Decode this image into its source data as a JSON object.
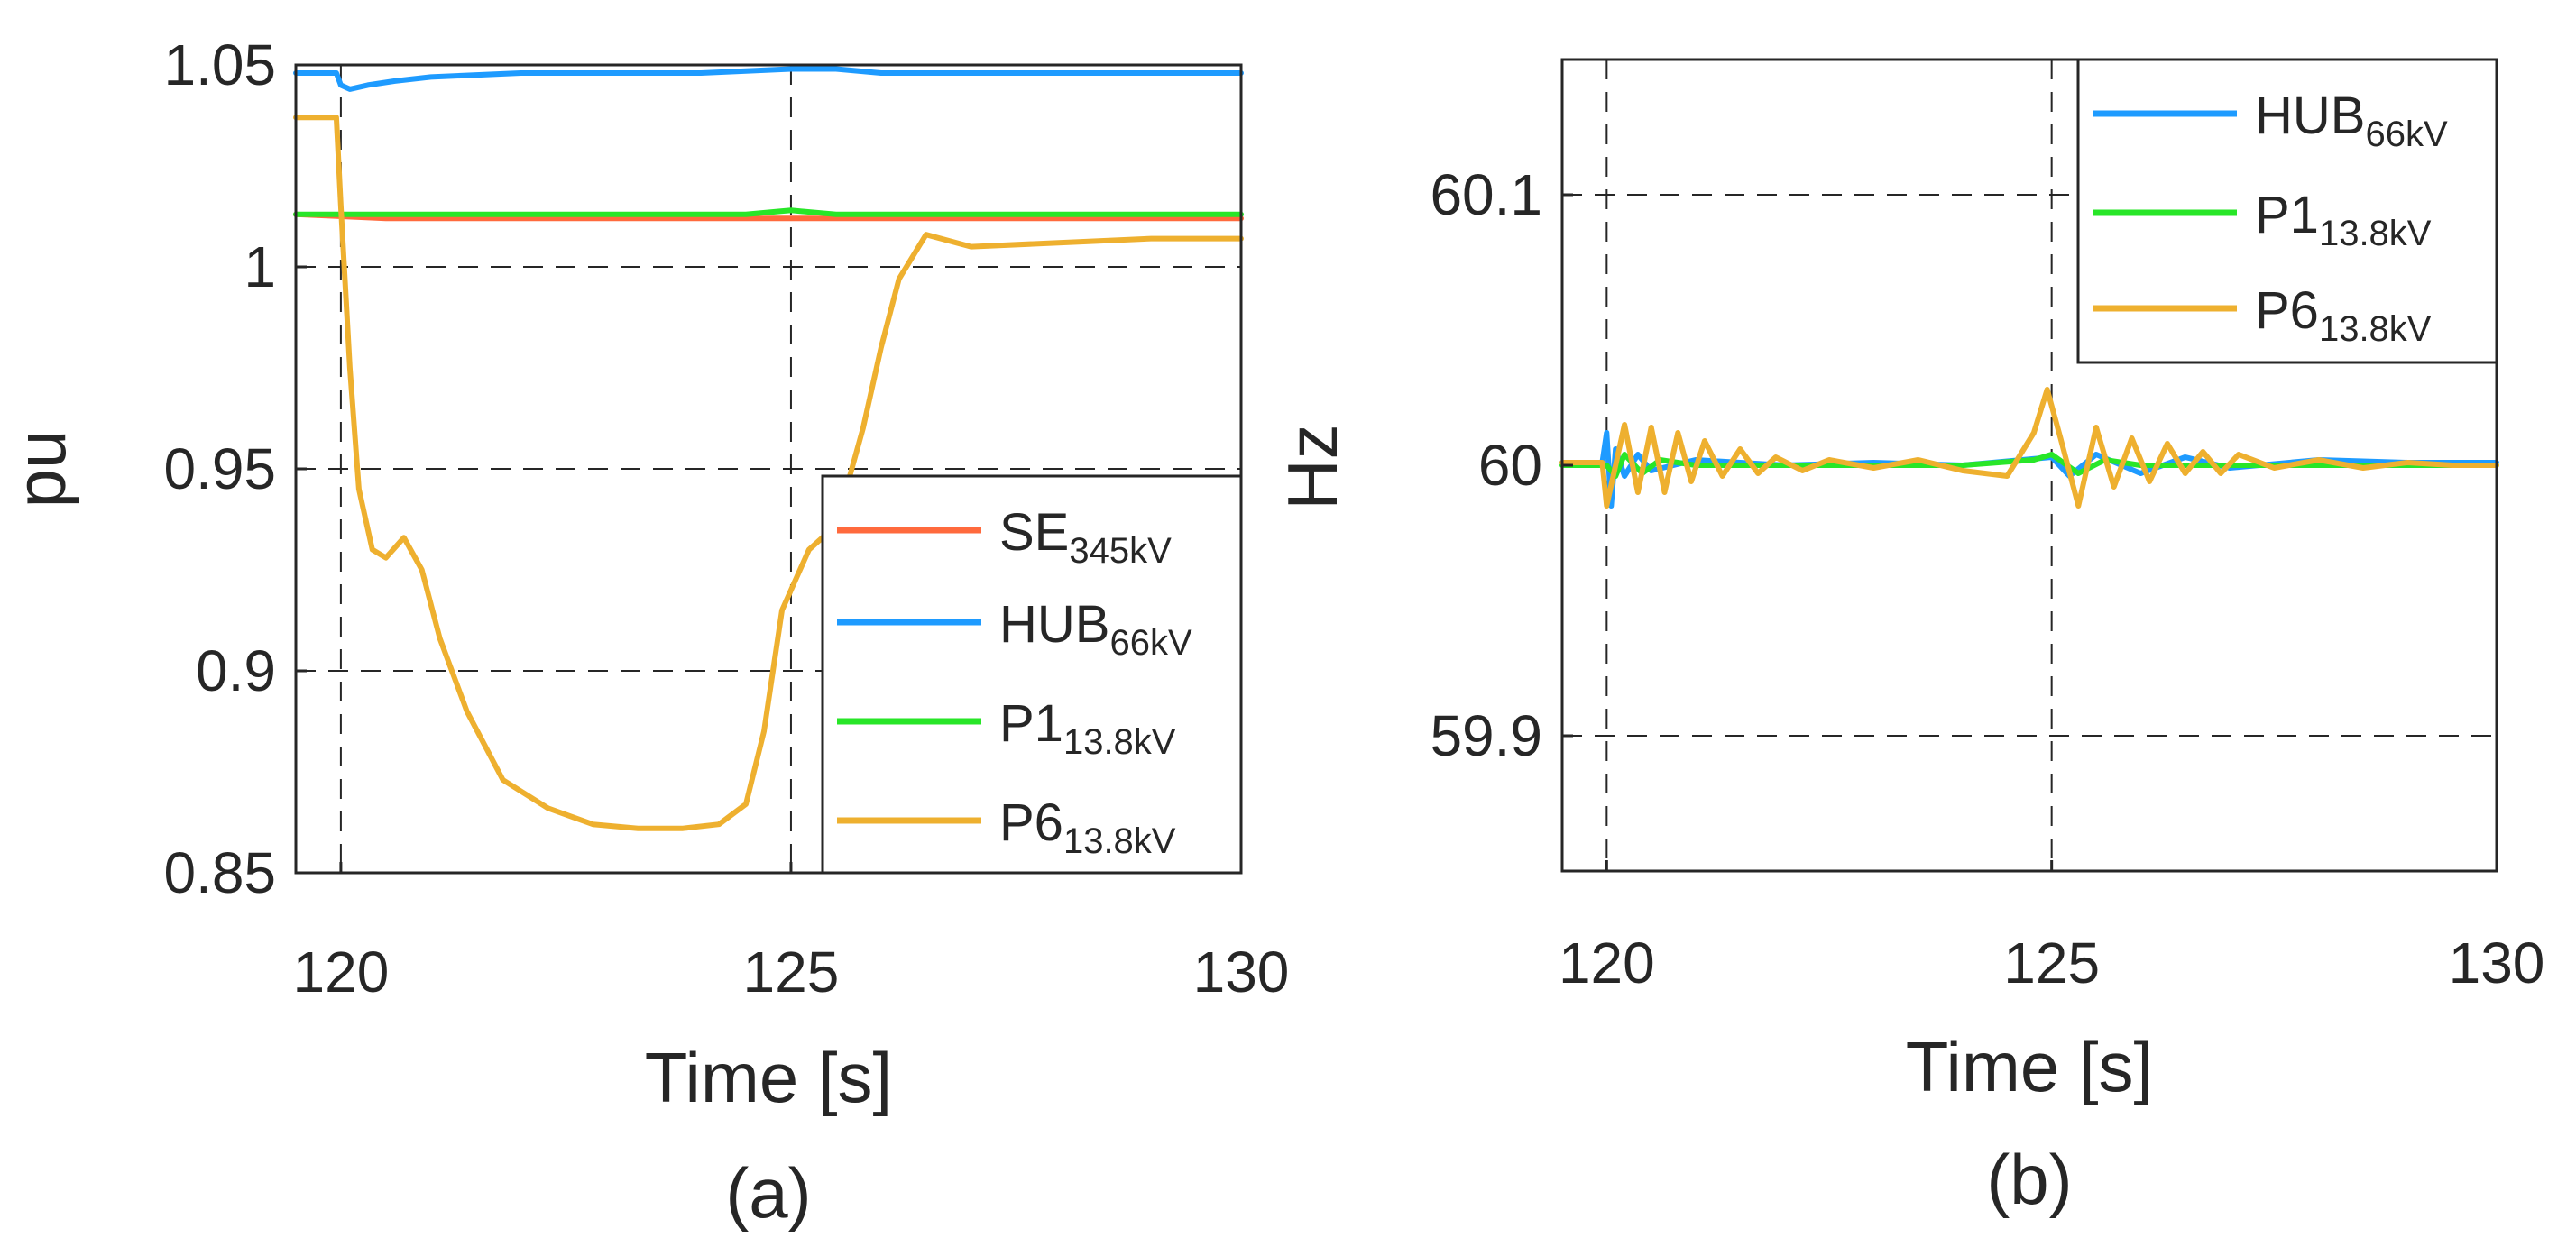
{
  "chart_data": [
    {
      "type": "line",
      "caption": "(a)",
      "xlabel": "Time [s]",
      "ylabel": "pu",
      "xlim": [
        119.5,
        130
      ],
      "ylim": [
        0.85,
        1.05
      ],
      "xticks": [
        120,
        125,
        130
      ],
      "xtick_labels": [
        "120",
        "125",
        "130"
      ],
      "yticks": [
        0.85,
        0.9,
        0.95,
        1.0,
        1.05
      ],
      "ytick_labels": [
        "0.85",
        "0.9",
        "0.95",
        "1",
        "1.05"
      ],
      "grid": {
        "vertical": [
          120,
          125
        ],
        "horizontal": [
          0.9,
          0.95,
          1.0
        ]
      },
      "legend_position": "bottom-right",
      "series": [
        {
          "name": "SE",
          "sub": "345kV",
          "color": "#ff6a3d",
          "x": [
            119.5,
            120.5,
            121.5,
            122.5,
            123.5,
            124.5,
            125.5,
            126.5,
            127.5,
            128.5,
            129.5,
            130
          ],
          "y": [
            1.013,
            1.012,
            1.012,
            1.012,
            1.012,
            1.012,
            1.012,
            1.012,
            1.012,
            1.012,
            1.012,
            1.012
          ]
        },
        {
          "name": "HUB",
          "sub": "66kV",
          "color": "#1e9bff",
          "x": [
            119.5,
            119.95,
            120.0,
            120.1,
            120.3,
            120.6,
            121.0,
            122.0,
            123.0,
            124.0,
            125.0,
            125.5,
            126.0,
            127.0,
            128.0,
            129.0,
            130
          ],
          "y": [
            1.048,
            1.048,
            1.045,
            1.044,
            1.045,
            1.046,
            1.047,
            1.048,
            1.048,
            1.048,
            1.049,
            1.049,
            1.048,
            1.048,
            1.048,
            1.048,
            1.048
          ]
        },
        {
          "name": "P1",
          "sub": "13.8kV",
          "color": "#28e628",
          "x": [
            119.5,
            120.5,
            121.5,
            122.5,
            123.5,
            124.5,
            125.0,
            125.5,
            126.0,
            127.0,
            128.0,
            129.0,
            130
          ],
          "y": [
            1.013,
            1.013,
            1.013,
            1.013,
            1.013,
            1.013,
            1.014,
            1.013,
            1.013,
            1.013,
            1.013,
            1.013,
            1.013
          ]
        },
        {
          "name": "P6",
          "sub": "13.8kV",
          "color": "#eeb02f",
          "x": [
            119.5,
            119.95,
            120.0,
            120.1,
            120.2,
            120.35,
            120.5,
            120.7,
            120.9,
            121.1,
            121.4,
            121.8,
            122.3,
            122.8,
            123.3,
            123.8,
            124.2,
            124.5,
            124.7,
            124.9,
            125.2,
            125.5,
            125.8,
            126.0,
            126.2,
            126.5,
            127.0,
            128.0,
            129.0,
            130
          ],
          "y": [
            1.037,
            1.037,
            1.015,
            0.975,
            0.945,
            0.93,
            0.928,
            0.933,
            0.925,
            0.908,
            0.89,
            0.873,
            0.866,
            0.862,
            0.861,
            0.861,
            0.862,
            0.867,
            0.885,
            0.915,
            0.93,
            0.936,
            0.96,
            0.98,
            0.997,
            1.008,
            1.005,
            1.006,
            1.007,
            1.007
          ]
        }
      ]
    },
    {
      "type": "line",
      "caption": "(b)",
      "xlabel": "Time [s]",
      "ylabel": "Hz",
      "xlim": [
        119.5,
        130
      ],
      "ylim": [
        59.85,
        60.15
      ],
      "xticks": [
        120,
        125,
        130
      ],
      "xtick_labels": [
        "120",
        "125",
        "130"
      ],
      "yticks": [
        59.9,
        60.0,
        60.1
      ],
      "ytick_labels": [
        "59.9",
        "60",
        "60.1"
      ],
      "grid": {
        "vertical": [
          120,
          125
        ],
        "horizontal": [
          59.9,
          60.1
        ]
      },
      "legend_position": "top-right",
      "series": [
        {
          "name": "HUB",
          "sub": "66kV",
          "color": "#1e9bff",
          "x": [
            119.5,
            119.95,
            120.0,
            120.05,
            120.1,
            120.2,
            120.35,
            120.5,
            121.0,
            122.0,
            123.0,
            124.0,
            125.0,
            125.2,
            125.5,
            126.0,
            126.5,
            127.0,
            128.0,
            129.0,
            130
          ],
          "y": [
            60.001,
            60.001,
            60.012,
            59.985,
            60.006,
            59.996,
            60.004,
            59.998,
            60.002,
            60.0,
            60.001,
            60.0,
            60.003,
            59.996,
            60.004,
            59.997,
            60.003,
            59.999,
            60.002,
            60.001,
            60.001
          ]
        },
        {
          "name": "P1",
          "sub": "13.8kV",
          "color": "#28e628",
          "x": [
            119.5,
            120.0,
            120.1,
            120.2,
            120.4,
            120.6,
            121.0,
            122.0,
            123.0,
            124.0,
            124.8,
            125.0,
            125.3,
            125.6,
            126.0,
            127.0,
            128.0,
            129.0,
            130
          ],
          "y": [
            60.0,
            60.0,
            59.996,
            60.004,
            59.997,
            60.002,
            60.0,
            60.0,
            60.0,
            60.0,
            60.002,
            60.004,
            59.997,
            60.002,
            60.0,
            60.0,
            60.0,
            60.0,
            60.0
          ]
        },
        {
          "name": "P6",
          "sub": "13.8kV",
          "color": "#eeb02f",
          "x": [
            119.5,
            119.95,
            120.0,
            120.1,
            120.2,
            120.35,
            120.5,
            120.65,
            120.8,
            120.95,
            121.1,
            121.3,
            121.5,
            121.7,
            121.9,
            122.2,
            122.5,
            123.0,
            123.5,
            124.0,
            124.5,
            124.8,
            124.95,
            125.1,
            125.3,
            125.5,
            125.7,
            125.9,
            126.1,
            126.3,
            126.5,
            126.7,
            126.9,
            127.1,
            127.5,
            128.0,
            128.5,
            129.0,
            129.5,
            130
          ],
          "y": [
            60.001,
            60.001,
            59.985,
            60.0,
            60.015,
            59.99,
            60.014,
            59.99,
            60.012,
            59.994,
            60.009,
            59.996,
            60.006,
            59.997,
            60.003,
            59.998,
            60.002,
            59.999,
            60.002,
            59.998,
            59.996,
            60.012,
            60.028,
            60.01,
            59.985,
            60.014,
            59.992,
            60.01,
            59.994,
            60.008,
            59.997,
            60.005,
            59.997,
            60.004,
            59.999,
            60.002,
            59.999,
            60.001,
            60.0,
            60.0
          ]
        }
      ]
    }
  ]
}
